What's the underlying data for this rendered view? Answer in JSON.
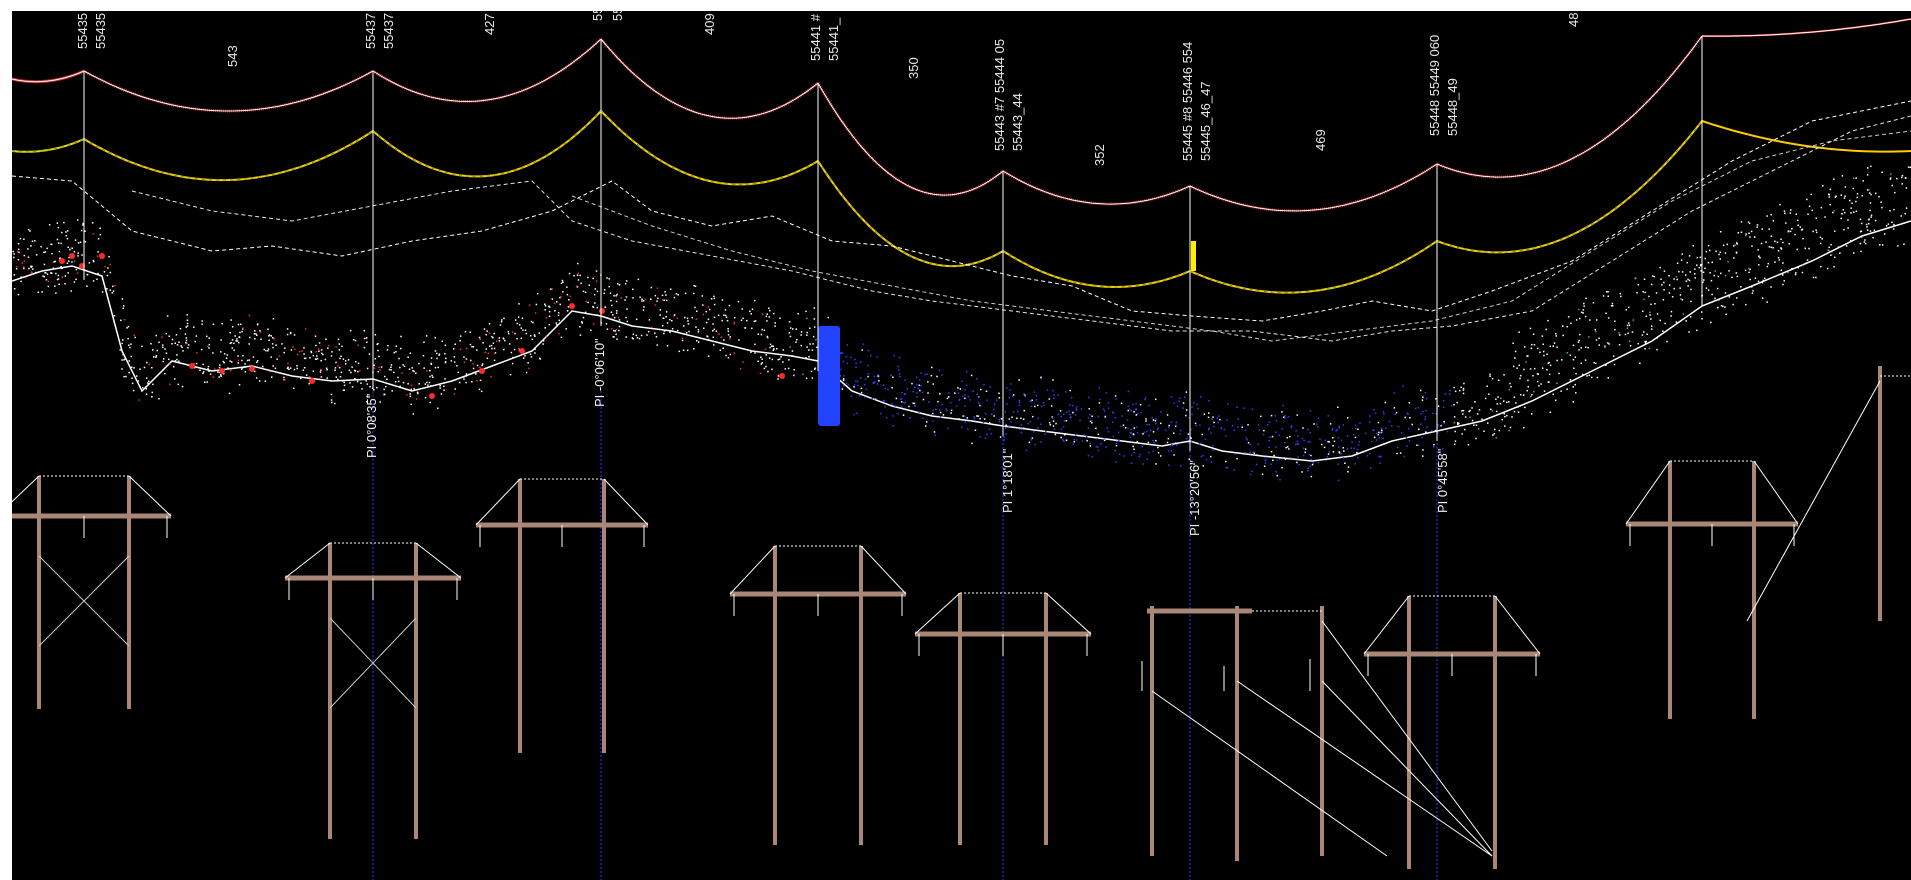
{
  "viewport": {
    "background": "#000000",
    "frame": "#ffffff"
  },
  "colors": {
    "conductor_top": "#ff3030",
    "conductor_top_core": "#ffffff",
    "conductor_mid": "#ffcc00",
    "conductor_mid_alt": "#22cc44",
    "ground_points": "#ffffff",
    "ground_red": "#ff2a2a",
    "ground_blue": "#2244ff",
    "ground_green": "#22cc44",
    "structure": "#a98676",
    "pi_line": "#2a3bff",
    "yellow_marker": "#ffee00"
  },
  "towers": [
    {
      "label_a": "55435",
      "label_b": "55435"
    },
    {
      "label_a": "55437",
      "label_b": "55437"
    },
    {
      "label_a": "55",
      "label_b": "55"
    },
    {
      "label_a": "55441 #",
      "label_b": "55441_"
    },
    {
      "label_a": "55443 #7 55444 05",
      "label_b": "55443_44"
    },
    {
      "label_a": "55445 #8 55446 554",
      "label_b": "55445_46_47"
    },
    {
      "label_a": "55448 55449 060",
      "label_b": "55448_49"
    }
  ],
  "span_labels": [
    "543",
    "427",
    "409",
    "350",
    "352",
    "469",
    "48"
  ],
  "pi_labels": [
    "PI 0°08'35\"",
    "PI -0°06'10\"",
    "PI 1°18'01\"",
    "PI -13°20'56\"",
    "PI 0°45'58\""
  ]
}
